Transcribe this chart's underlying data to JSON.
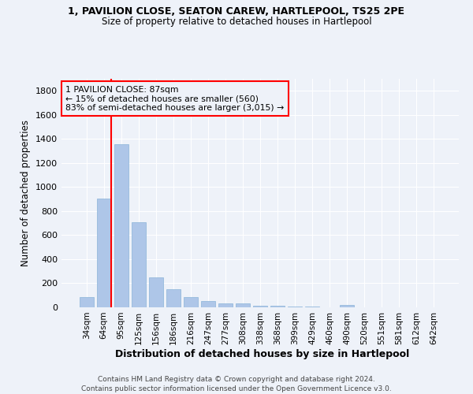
{
  "title1": "1, PAVILION CLOSE, SEATON CAREW, HARTLEPOOL, TS25 2PE",
  "title2": "Size of property relative to detached houses in Hartlepool",
  "xlabel": "Distribution of detached houses by size in Hartlepool",
  "ylabel": "Number of detached properties",
  "categories": [
    "34sqm",
    "64sqm",
    "95sqm",
    "125sqm",
    "156sqm",
    "186sqm",
    "216sqm",
    "247sqm",
    "277sqm",
    "308sqm",
    "338sqm",
    "368sqm",
    "399sqm",
    "429sqm",
    "460sqm",
    "490sqm",
    "520sqm",
    "551sqm",
    "581sqm",
    "612sqm",
    "642sqm"
  ],
  "values": [
    88,
    905,
    1355,
    705,
    250,
    148,
    88,
    50,
    32,
    30,
    15,
    10,
    8,
    5,
    3,
    20,
    2,
    1,
    0,
    0,
    0
  ],
  "bar_color": "#aec6e8",
  "bar_edge_color": "#8ab4d8",
  "vline_x_index": 1,
  "vline_color": "red",
  "annotation_text": "1 PAVILION CLOSE: 87sqm\n← 15% of detached houses are smaller (560)\n83% of semi-detached houses are larger (3,015) →",
  "annotation_box_color": "red",
  "annotation_text_color": "black",
  "ylim": [
    0,
    1900
  ],
  "yticks": [
    0,
    200,
    400,
    600,
    800,
    1000,
    1200,
    1400,
    1600,
    1800
  ],
  "footer1": "Contains HM Land Registry data © Crown copyright and database right 2024.",
  "footer2": "Contains public sector information licensed under the Open Government Licence v3.0.",
  "bg_color": "#eef2f9",
  "grid_color": "white"
}
